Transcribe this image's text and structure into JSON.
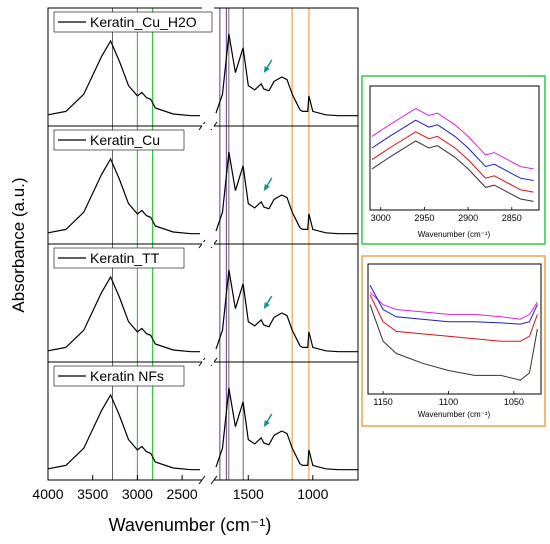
{
  "chart_data": {
    "type": "line",
    "xlabel": "Wavenumber (cm⁻¹)",
    "ylabel": "Absorbance (a.u.)",
    "x_ticks": [
      "4000",
      "3500",
      "3000",
      "2500",
      "1500",
      "1000"
    ],
    "x_reversed": true,
    "axis_break": "//",
    "panels": [
      {
        "legend": "Keratin_Cu_H2O",
        "legend_color": "#e020e0",
        "series": [
          {
            "x": [
              4000,
              3800,
              3600,
              3500,
              3400,
              3300,
              3200,
              3100,
              3000,
              2950,
              2900,
              2850,
              2800,
              2600,
              2400,
              2300,
              1750,
              1700,
              1650,
              1600,
              1540,
              1500,
              1450,
              1400,
              1380,
              1340,
              1300,
              1240,
              1200,
              1160,
              1100,
              1080,
              1040,
              1030,
              1000,
              900,
              800,
              700,
              650
            ],
            "y": [
              0.06,
              0.1,
              0.3,
              0.52,
              0.74,
              0.92,
              0.68,
              0.4,
              0.28,
              0.32,
              0.26,
              0.24,
              0.14,
              0.07,
              0.05,
              0.05,
              0.08,
              0.3,
              1.0,
              0.55,
              0.84,
              0.4,
              0.35,
              0.42,
              0.36,
              0.34,
              0.45,
              0.5,
              0.47,
              0.3,
              0.12,
              0.1,
              0.1,
              0.28,
              0.1,
              0.06,
              0.05,
              0.05,
              0.05
            ]
          }
        ]
      },
      {
        "legend": "Keratin_Cu",
        "legend_color": "#1a1ad0",
        "series": [
          {
            "x": [
              4000,
              3800,
              3600,
              3500,
              3400,
              3300,
              3200,
              3100,
              3000,
              2950,
              2900,
              2850,
              2800,
              2600,
              2400,
              2300,
              1750,
              1700,
              1650,
              1600,
              1540,
              1500,
              1450,
              1400,
              1380,
              1340,
              1300,
              1240,
              1200,
              1160,
              1100,
              1080,
              1040,
              1030,
              1000,
              900,
              800,
              700,
              650
            ],
            "y": [
              0.06,
              0.1,
              0.3,
              0.52,
              0.74,
              0.92,
              0.68,
              0.4,
              0.28,
              0.32,
              0.26,
              0.24,
              0.14,
              0.07,
              0.05,
              0.05,
              0.08,
              0.3,
              1.0,
              0.55,
              0.84,
              0.4,
              0.35,
              0.42,
              0.36,
              0.34,
              0.45,
              0.5,
              0.47,
              0.3,
              0.12,
              0.1,
              0.1,
              0.28,
              0.1,
              0.06,
              0.05,
              0.05,
              0.05
            ]
          }
        ]
      },
      {
        "legend": "Keratin_TT",
        "legend_color": "#e01010",
        "series": [
          {
            "x": [
              4000,
              3800,
              3600,
              3500,
              3400,
              3300,
              3200,
              3100,
              3000,
              2950,
              2900,
              2850,
              2800,
              2600,
              2400,
              2300,
              1750,
              1700,
              1650,
              1600,
              1540,
              1500,
              1450,
              1400,
              1380,
              1340,
              1300,
              1240,
              1200,
              1160,
              1100,
              1080,
              1040,
              1030,
              1000,
              900,
              800,
              700,
              650
            ],
            "y": [
              0.06,
              0.1,
              0.3,
              0.52,
              0.74,
              0.92,
              0.68,
              0.4,
              0.28,
              0.32,
              0.26,
              0.24,
              0.14,
              0.07,
              0.05,
              0.05,
              0.08,
              0.3,
              1.0,
              0.55,
              0.84,
              0.4,
              0.35,
              0.42,
              0.36,
              0.34,
              0.45,
              0.5,
              0.47,
              0.3,
              0.12,
              0.1,
              0.1,
              0.28,
              0.1,
              0.06,
              0.05,
              0.05,
              0.05
            ]
          }
        ]
      },
      {
        "legend": "Keratin NFs",
        "legend_color": "#000000",
        "series": [
          {
            "x": [
              4000,
              3800,
              3600,
              3500,
              3400,
              3300,
              3200,
              3100,
              3000,
              2950,
              2900,
              2850,
              2800,
              2600,
              2400,
              2300,
              1750,
              1700,
              1650,
              1600,
              1540,
              1500,
              1450,
              1400,
              1380,
              1340,
              1300,
              1240,
              1200,
              1160,
              1100,
              1080,
              1040,
              1030,
              1000,
              900,
              800,
              700,
              650
            ],
            "y": [
              0.06,
              0.1,
              0.3,
              0.52,
              0.74,
              0.92,
              0.68,
              0.4,
              0.28,
              0.32,
              0.26,
              0.24,
              0.14,
              0.07,
              0.05,
              0.05,
              0.08,
              0.3,
              1.0,
              0.55,
              0.84,
              0.4,
              0.35,
              0.42,
              0.36,
              0.34,
              0.45,
              0.5,
              0.47,
              0.3,
              0.12,
              0.1,
              0.1,
              0.28,
              0.1,
              0.06,
              0.05,
              0.05,
              0.05
            ]
          }
        ]
      }
    ],
    "reference_lines": {
      "black": [
        3280,
        1650,
        1540
      ],
      "purple": [
        1720,
        1670
      ],
      "green_band": [
        3000,
        2830
      ],
      "orange_band": [
        1160,
        1030
      ]
    },
    "inset_green": {
      "xlabel": "Wavenumber (cm⁻¹)",
      "x_ticks": [
        "3000",
        "2950",
        "2900",
        "2850"
      ],
      "xlim": [
        3010,
        2820
      ],
      "series": [
        {
          "color": "#e020e0",
          "x": [
            3010,
            2990,
            2960,
            2945,
            2935,
            2915,
            2900,
            2880,
            2870,
            2855,
            2840,
            2825
          ],
          "y": [
            0.6,
            0.7,
            0.84,
            0.78,
            0.8,
            0.7,
            0.6,
            0.44,
            0.46,
            0.4,
            0.34,
            0.32
          ]
        },
        {
          "color": "#1a1ad0",
          "x": [
            3010,
            2990,
            2960,
            2945,
            2935,
            2915,
            2900,
            2880,
            2870,
            2855,
            2840,
            2825
          ],
          "y": [
            0.5,
            0.6,
            0.74,
            0.68,
            0.7,
            0.6,
            0.5,
            0.34,
            0.36,
            0.3,
            0.24,
            0.22
          ]
        },
        {
          "color": "#e01010",
          "x": [
            3010,
            2990,
            2960,
            2945,
            2935,
            2915,
            2900,
            2880,
            2870,
            2855,
            2840,
            2825
          ],
          "y": [
            0.4,
            0.5,
            0.64,
            0.58,
            0.6,
            0.5,
            0.4,
            0.24,
            0.26,
            0.2,
            0.14,
            0.12
          ]
        },
        {
          "color": "#333333",
          "x": [
            3010,
            2990,
            2960,
            2945,
            2935,
            2915,
            2900,
            2880,
            2870,
            2855,
            2840,
            2825
          ],
          "y": [
            0.32,
            0.42,
            0.56,
            0.5,
            0.52,
            0.42,
            0.32,
            0.16,
            0.18,
            0.12,
            0.06,
            0.04
          ]
        }
      ]
    },
    "inset_orange": {
      "xlabel": "Wavenumber (cm⁻¹)",
      "x_ticks": [
        "1150",
        "1100",
        "1050"
      ],
      "xlim": [
        1160,
        1030
      ],
      "series": [
        {
          "color": "#e020e0",
          "x": [
            1160,
            1150,
            1140,
            1120,
            1100,
            1080,
            1060,
            1045,
            1038,
            1032
          ],
          "y": [
            0.8,
            0.7,
            0.66,
            0.64,
            0.62,
            0.62,
            0.6,
            0.58,
            0.62,
            0.72
          ]
        },
        {
          "color": "#1a1ad0",
          "x": [
            1160,
            1150,
            1140,
            1120,
            1100,
            1080,
            1060,
            1045,
            1038,
            1032
          ],
          "y": [
            0.86,
            0.66,
            0.6,
            0.58,
            0.56,
            0.56,
            0.55,
            0.54,
            0.56,
            0.7
          ]
        },
        {
          "color": "#e01010",
          "x": [
            1160,
            1150,
            1140,
            1120,
            1100,
            1080,
            1060,
            1045,
            1038,
            1032
          ],
          "y": [
            0.78,
            0.56,
            0.48,
            0.46,
            0.44,
            0.42,
            0.4,
            0.4,
            0.44,
            0.62
          ]
        },
        {
          "color": "#333333",
          "x": [
            1160,
            1150,
            1140,
            1120,
            1100,
            1080,
            1060,
            1045,
            1038,
            1032
          ],
          "y": [
            0.7,
            0.4,
            0.3,
            0.22,
            0.16,
            0.12,
            0.12,
            0.08,
            0.14,
            0.5
          ]
        }
      ]
    }
  }
}
